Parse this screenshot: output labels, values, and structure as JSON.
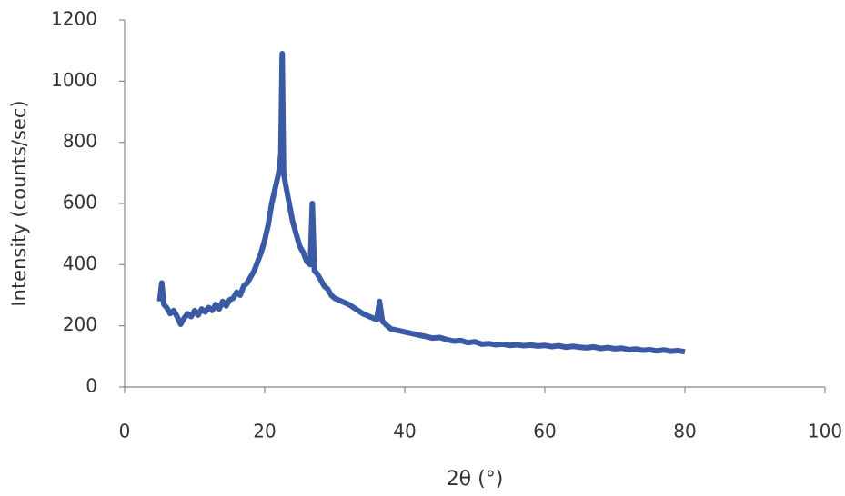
{
  "chart_data": {
    "type": "line",
    "x_label": "2θ (°)",
    "y_label": "Intensity (counts/sec)",
    "x": [
      5,
      5.3,
      5.6,
      6,
      6.5,
      7,
      7.5,
      8,
      8.5,
      9,
      9.5,
      10,
      10.5,
      11,
      11.5,
      12,
      12.5,
      13,
      13.5,
      14,
      14.5,
      15,
      15.5,
      16,
      16.5,
      17,
      17.5,
      18,
      18.5,
      19,
      19.5,
      20,
      20.5,
      21,
      21.5,
      22,
      22.3,
      22.5,
      22.7,
      23,
      23.5,
      24,
      24.5,
      25,
      25.5,
      26,
      26.5,
      26.8,
      27.1,
      27.5,
      28,
      28.5,
      29,
      29.5,
      30,
      31,
      32,
      33,
      34,
      35,
      36,
      36.4,
      36.8,
      37.5,
      38,
      39,
      40,
      41,
      42,
      43,
      44,
      45,
      46,
      47,
      48,
      49,
      50,
      51,
      52,
      53,
      54,
      55,
      56,
      57,
      58,
      59,
      60,
      61,
      62,
      63,
      64,
      65,
      66,
      67,
      68,
      69,
      70,
      71,
      72,
      73,
      74,
      75,
      76,
      77,
      78,
      79,
      80
    ],
    "series": [
      {
        "color": "#3a5aa6",
        "values": [
          280,
          340,
          270,
          260,
          240,
          250,
          230,
          205,
          225,
          240,
          230,
          250,
          235,
          255,
          245,
          260,
          250,
          270,
          255,
          280,
          265,
          285,
          290,
          310,
          300,
          330,
          340,
          360,
          380,
          410,
          440,
          480,
          530,
          600,
          650,
          700,
          760,
          1090,
          700,
          660,
          600,
          540,
          500,
          460,
          440,
          410,
          400,
          600,
          380,
          370,
          350,
          330,
          320,
          300,
          290,
          280,
          270,
          255,
          240,
          230,
          220,
          280,
          215,
          200,
          190,
          185,
          180,
          175,
          170,
          165,
          160,
          162,
          155,
          150,
          152,
          145,
          148,
          140,
          142,
          138,
          140,
          136,
          138,
          135,
          137,
          134,
          136,
          132,
          135,
          130,
          133,
          130,
          128,
          131,
          126,
          129,
          125,
          127,
          122,
          124,
          120,
          122,
          118,
          121,
          117,
          119,
          115
        ]
      }
    ],
    "xlim": [
      0,
      100
    ],
    "xticks": [
      0,
      20,
      40,
      60,
      80,
      100
    ],
    "ylim": [
      0,
      1200
    ],
    "yticks": [
      0,
      200,
      400,
      600,
      800,
      1000,
      1200
    ]
  }
}
